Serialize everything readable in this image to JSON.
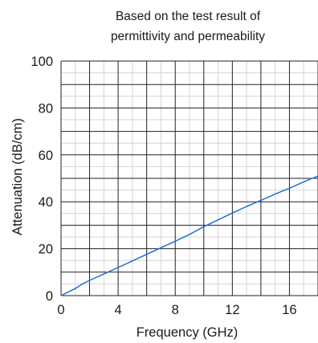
{
  "chart_data": {
    "type": "line",
    "title_lines": [
      "Based on the test result of",
      "permittivity and permeability"
    ],
    "xlabel": "Frequency (GHz)",
    "ylabel": "Attenuation (dB/cm)",
    "xlim": [
      0,
      18
    ],
    "ylim": [
      0,
      100
    ],
    "xticks": [
      0,
      4,
      8,
      12,
      16
    ],
    "yticks": [
      0,
      20,
      40,
      60,
      80,
      100
    ],
    "x_major_grid": [
      0,
      2,
      4,
      6,
      8,
      10,
      12,
      14,
      16,
      18
    ],
    "x_minor_grid": [
      1,
      3,
      5,
      7,
      9,
      11,
      13,
      15,
      17
    ],
    "y_major_grid": [
      0,
      10,
      20,
      30,
      40,
      50,
      60,
      70,
      80,
      90,
      100
    ],
    "y_minor_grid": [
      5,
      15,
      25,
      35,
      45,
      55,
      65,
      75,
      85,
      95
    ],
    "grid": true,
    "line_color": "#1f6fd6",
    "series": [
      {
        "x": [
          0,
          0.5,
          1,
          1.5,
          2,
          3,
          4,
          5,
          6,
          7,
          8,
          9,
          10,
          11,
          12,
          13,
          14,
          15,
          16,
          17,
          18
        ],
        "y": [
          0,
          1.5,
          3,
          5,
          6.5,
          9.2,
          12,
          14.8,
          17.6,
          20.4,
          23.2,
          26.1,
          29.4,
          32.3,
          35.2,
          38.0,
          40.6,
          43.3,
          45.8,
          48.5,
          51.0
        ]
      }
    ]
  }
}
